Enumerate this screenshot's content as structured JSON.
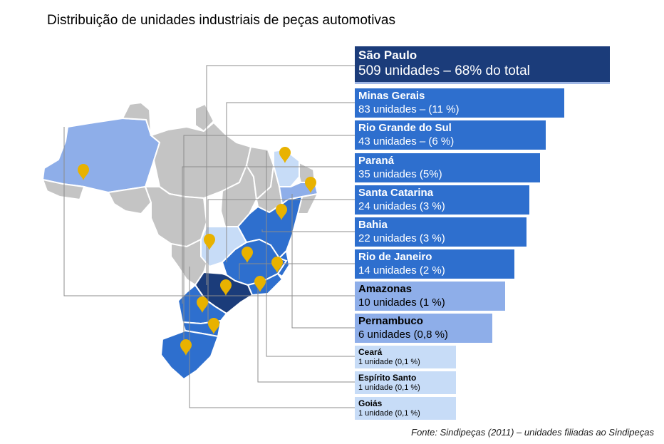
{
  "title": "Distribuição de unidades industriais de peças automotivas",
  "source": "Fonte: Sindipeças (2011) – unidades filiadas ao Sindipeças",
  "colors": {
    "dark": "#1b3c7a",
    "blue": "#2e6fce",
    "light": "#8eaee9",
    "pale": "#c7dcf7",
    "map_grey": "#c4c4c4",
    "pin": "#e8b200",
    "leader": "#8c8c8c"
  },
  "chart_data": {
    "type": "bar",
    "orientation": "horizontal",
    "title": "Distribuição de unidades industriais de peças automotivas",
    "unit": "unidades",
    "series": [
      {
        "values": [
          509,
          83,
          43,
          35,
          24,
          22,
          14,
          10,
          6,
          1,
          1,
          1
        ]
      }
    ],
    "categories": [
      "São Paulo",
      "Minas Gerais",
      "Rio Grande do Sul",
      "Paraná",
      "Santa Catarina",
      "Bahia",
      "Rio de Janeiro",
      "Amazonas",
      "Pernambuco",
      "Ceará",
      "Espírito Santo",
      "Goiás"
    ],
    "bars": [
      {
        "name": "São Paulo",
        "value": 509,
        "detail": "509 unidades – 68% do total",
        "color_group": "dark"
      },
      {
        "name": "Minas Gerais",
        "value": 83,
        "detail": "83 unidades – (11 %)",
        "color_group": "blue"
      },
      {
        "name": "Rio Grande do Sul",
        "value": 43,
        "detail": "43 unidades – (6 %)",
        "color_group": "blue"
      },
      {
        "name": "Paraná",
        "value": 35,
        "detail": "35 unidades (5%)",
        "color_group": "blue"
      },
      {
        "name": "Santa Catarina",
        "value": 24,
        "detail": "24 unidades (3 %)",
        "color_group": "blue"
      },
      {
        "name": "Bahia",
        "value": 22,
        "detail": "22 unidades (3 %)",
        "color_group": "blue"
      },
      {
        "name": "Rio de Janeiro",
        "value": 14,
        "detail": "14 unidades (2 %)",
        "color_group": "blue"
      },
      {
        "name": "Amazonas",
        "value": 10,
        "detail": "10 unidades (1 %)",
        "color_group": "light"
      },
      {
        "name": "Pernambuco",
        "value": 6,
        "detail": "6 unidades (0,8 %)",
        "color_group": "light"
      },
      {
        "name": "Ceará",
        "value": 1,
        "detail": "1 unidade (0,1 %)",
        "color_group": "pale"
      },
      {
        "name": "Espírito Santo",
        "value": 1,
        "detail": "1 unidade (0,1 %)",
        "color_group": "pale"
      },
      {
        "name": "Goiás",
        "value": 1,
        "detail": "1 unidade (0,1 %)",
        "color_group": "pale"
      }
    ]
  }
}
